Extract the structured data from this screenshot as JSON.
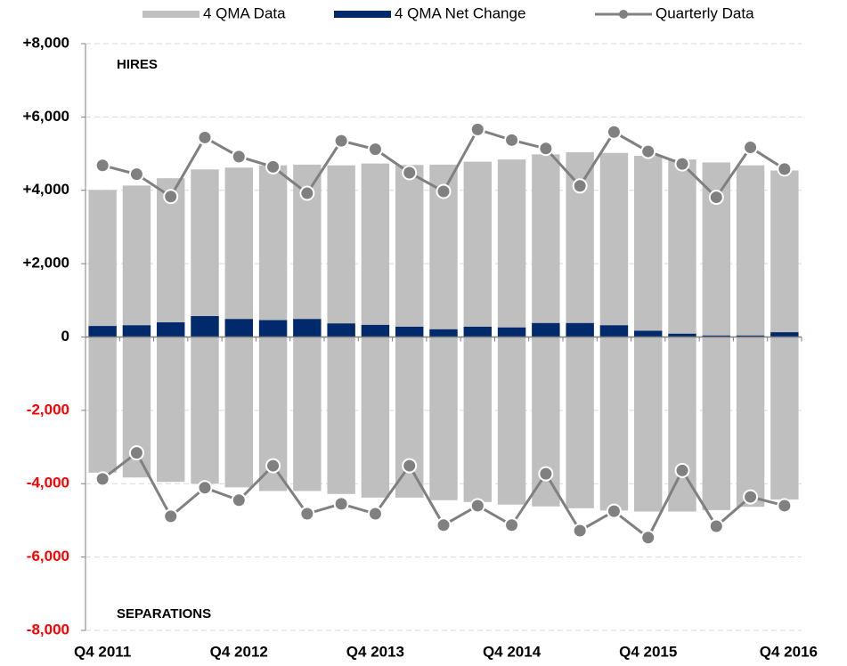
{
  "chart_data": {
    "type": "bar",
    "categories": [
      "Q4 2011",
      null,
      null,
      null,
      "Q4 2012",
      null,
      null,
      null,
      "Q4 2013",
      null,
      null,
      null,
      "Q4 2014",
      null,
      null,
      null,
      "Q4 2015",
      null,
      null,
      null,
      "Q4 2016"
    ],
    "series": [
      {
        "name": "4 QMA Data",
        "color": "#bfbfbf",
        "hires": [
          4010,
          4130,
          4330,
          4570,
          4620,
          4680,
          4700,
          4680,
          4730,
          4690,
          4700,
          4780,
          4840,
          4980,
          5040,
          5020,
          4940,
          4840,
          4760,
          4680,
          4540
        ],
        "separations": [
          -3700,
          -3830,
          -3950,
          -4000,
          -4100,
          -4200,
          -4200,
          -4280,
          -4380,
          -4380,
          -4450,
          -4500,
          -4570,
          -4620,
          -4670,
          -4730,
          -4760,
          -4760,
          -4720,
          -4630,
          -4430
        ]
      },
      {
        "name": "4 QMA Net Change",
        "color": "#002a6b",
        "values": [
          300,
          320,
          400,
          570,
          490,
          460,
          490,
          370,
          330,
          280,
          210,
          280,
          260,
          380,
          380,
          320,
          170,
          90,
          40,
          40,
          130
        ]
      },
      {
        "name": "Quarterly Data",
        "color": "#808080",
        "hires": [
          4680,
          4440,
          3830,
          5440,
          4920,
          4640,
          3920,
          5350,
          5120,
          4480,
          3970,
          5660,
          5370,
          5140,
          4120,
          5590,
          5060,
          4720,
          3810,
          5170,
          4580
        ],
        "separations": [
          -3870,
          -3160,
          -4890,
          -4110,
          -4450,
          -3510,
          -4820,
          -4550,
          -4820,
          -3510,
          -5130,
          -4600,
          -5130,
          -3730,
          -5280,
          -4750,
          -5470,
          -3640,
          -5160,
          -4360,
          -4600
        ]
      }
    ],
    "annotations": [
      "HIRES",
      "SEPARATIONS"
    ],
    "ylim": [
      -8000,
      8000
    ],
    "yticks": [
      {
        "value": -8000,
        "label": "-8,000"
      },
      {
        "value": -6000,
        "label": "-6,000"
      },
      {
        "value": -4000,
        "label": "-4,000"
      },
      {
        "value": -2000,
        "label": "-2,000"
      },
      0,
      {
        "value": 2000,
        "label": "+2,000"
      },
      {
        "value": 4000,
        "label": "+4,000"
      },
      {
        "value": 6000,
        "label": "+6,000"
      },
      {
        "value": 8000,
        "label": "+8,000"
      }
    ],
    "negative_tick_color": "#ff0000",
    "grid": true
  }
}
